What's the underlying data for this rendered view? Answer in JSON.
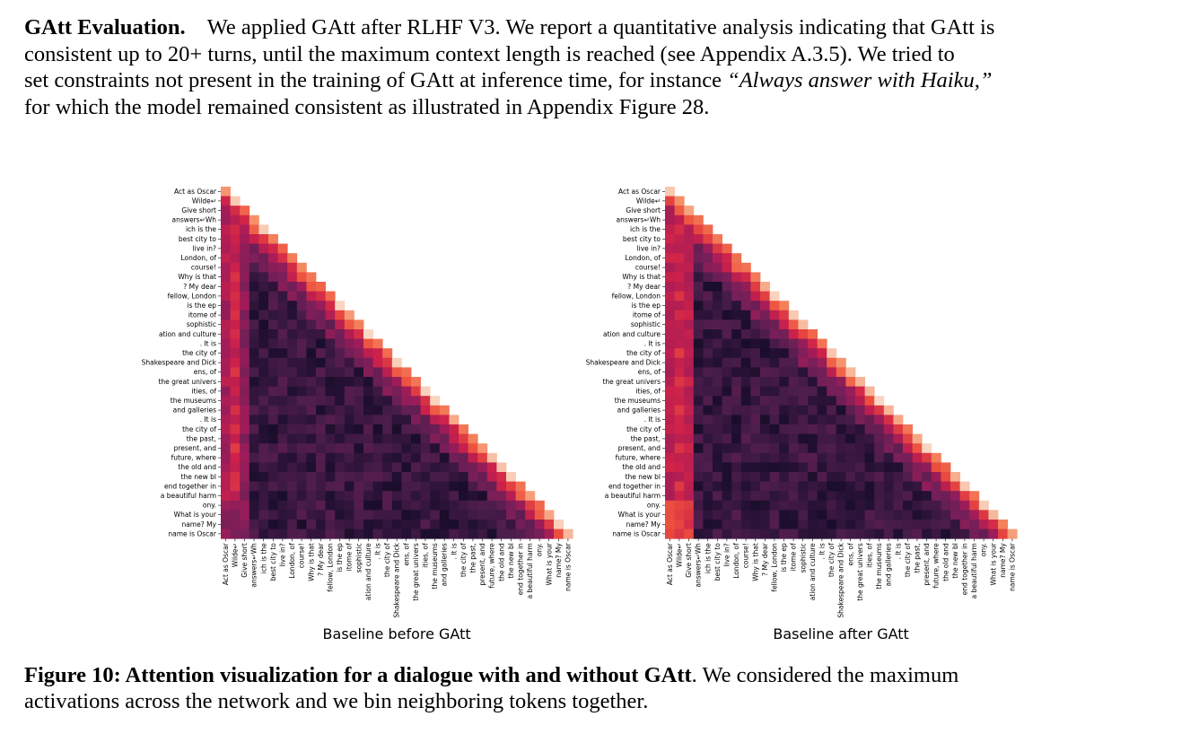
{
  "paragraph": {
    "heading": "GAtt Evaluation.",
    "line1_rest": "We applied GAtt after RLHF V3. We report a quantitative analysis indicating that GAtt is",
    "line2": "consistent up to 20+ turns, until the maximum context length is reached (see Appendix A.3.5). We tried to",
    "line3_start": "set constraints not present in the training of GAtt at inference time, for instance ",
    "line3_italic": "“Always answer with Haiku,”",
    "line4": "for which the model remained consistent as illustrated in Appendix Figure 28."
  },
  "figure": {
    "caption_label": "Figure 10: Attention visualization for a dialogue with and without GAtt",
    "caption_rest_1": ". We considered the maximum",
    "caption_rest_2": "activations across the network and we bin neighboring tokens together."
  },
  "chart_data": [
    {
      "type": "heatmap",
      "title": "Baseline before GAtt",
      "variant": "before",
      "tokens": [
        "Act as Oscar",
        "Wilde↵",
        "Give short",
        "answers↵Wh",
        "ich is the",
        "best city to",
        "live in?",
        "London, of",
        "course!",
        "Why is that",
        "? My dear",
        "fellow, London",
        "is the ep",
        "itome of",
        "sophistic",
        "ation and culture",
        ". It is",
        "the city of",
        "Shakespeare and Dick",
        "ens, of",
        "the great univers",
        "ities, of",
        "the museums",
        "and galleries",
        ". It is",
        "the city of",
        "the past,",
        "present, and",
        "future, where",
        "the old and",
        "the new bl",
        "end together in",
        "a beautiful harm",
        "ony.",
        "What is your",
        "name? My",
        "name is Oscar"
      ],
      "mask": "lower-triangular",
      "colormap": "rocket (dark purple = low, pale peach = high)"
    },
    {
      "type": "heatmap",
      "title": "Baseline after GAtt",
      "variant": "after",
      "tokens": [
        "Act as Oscar",
        "Wilde↵",
        "Give short",
        "answers↵Wh",
        "ich is the",
        "best city to",
        "live in?",
        "London, of",
        "course!",
        "Why is that",
        "? My dear",
        "fellow, London",
        "is the ep",
        "itome of",
        "sophistic",
        "ation and culture",
        ". It is",
        "the city of",
        "Shakespeare and Dick",
        "ens, of",
        "the great univers",
        "ities, of",
        "the museums",
        "and galleries",
        ". It is",
        "the city of",
        "the past,",
        "present, and",
        "future, where",
        "the old and",
        "the new bl",
        "end together in",
        "a beautiful harm",
        "ony.",
        "What is your",
        "name? My",
        "name is Oscar"
      ],
      "mask": "lower-triangular",
      "colormap": "rocket (dark purple = low, pale peach = high)"
    }
  ]
}
